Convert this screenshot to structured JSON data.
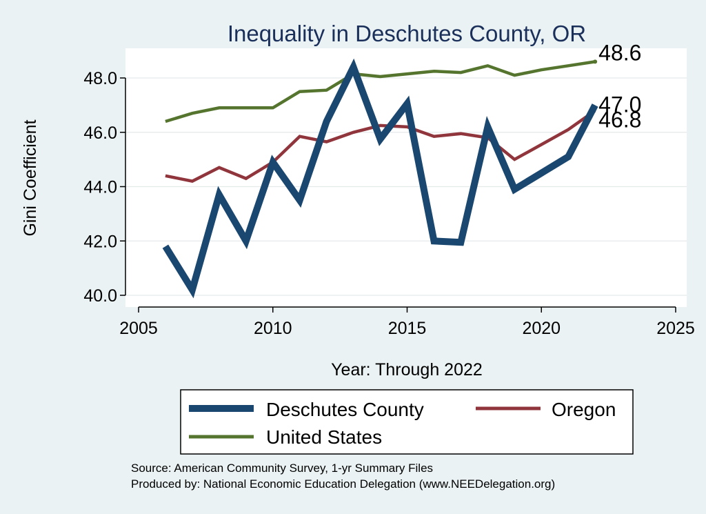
{
  "chart_data": {
    "type": "line",
    "title": "Inequality in Deschutes County, OR",
    "xlabel": "Year: Through 2022",
    "ylabel": "Gini Coefficient",
    "xlim": [
      2005,
      2025
    ],
    "ylim": [
      40.0,
      49.0
    ],
    "x_ticks": [
      2005,
      2010,
      2015,
      2020,
      2025
    ],
    "y_ticks": [
      40.0,
      42.0,
      44.0,
      46.0,
      48.0
    ],
    "y_tick_labels": [
      "40.0",
      "42.0",
      "44.0",
      "46.0",
      "48.0"
    ],
    "grid": true,
    "x": [
      2006,
      2007,
      2008,
      2009,
      2010,
      2011,
      2012,
      2013,
      2014,
      2015,
      2016,
      2017,
      2018,
      2019,
      2020,
      2021,
      2022
    ],
    "series": [
      {
        "name": "Deschutes County",
        "color": "#1a476f",
        "values": [
          41.8,
          40.2,
          43.7,
          42.0,
          44.9,
          43.5,
          46.4,
          48.4,
          45.75,
          47.05,
          42.0,
          41.95,
          46.2,
          43.9,
          44.5,
          45.1,
          47.0
        ]
      },
      {
        "name": "Oregon",
        "color": "#90353b",
        "values": [
          44.4,
          44.2,
          44.7,
          44.3,
          44.9,
          45.85,
          45.65,
          46.0,
          46.25,
          46.2,
          45.85,
          45.95,
          45.8,
          45.0,
          45.55,
          46.1,
          46.8
        ]
      },
      {
        "name": "United States",
        "color": "#55752f",
        "values": [
          46.4,
          46.7,
          46.9,
          46.9,
          46.9,
          47.5,
          47.55,
          48.15,
          48.05,
          48.15,
          48.25,
          48.2,
          48.45,
          48.1,
          48.3,
          48.45,
          48.6
        ]
      }
    ],
    "end_labels": [
      {
        "series": "United States",
        "text": "48.6"
      },
      {
        "series": "Deschutes County",
        "text": "47.0"
      },
      {
        "series": "Oregon",
        "text": "46.8"
      }
    ],
    "legend": {
      "placement": "bottom",
      "entries": [
        "Deschutes County",
        "Oregon",
        "United States"
      ]
    },
    "notes": [
      "Source: American Community Survey, 1-yr Summary Files",
      "Produced by: National Economic Education Delegation (www.NEEDelegation.org)"
    ]
  }
}
